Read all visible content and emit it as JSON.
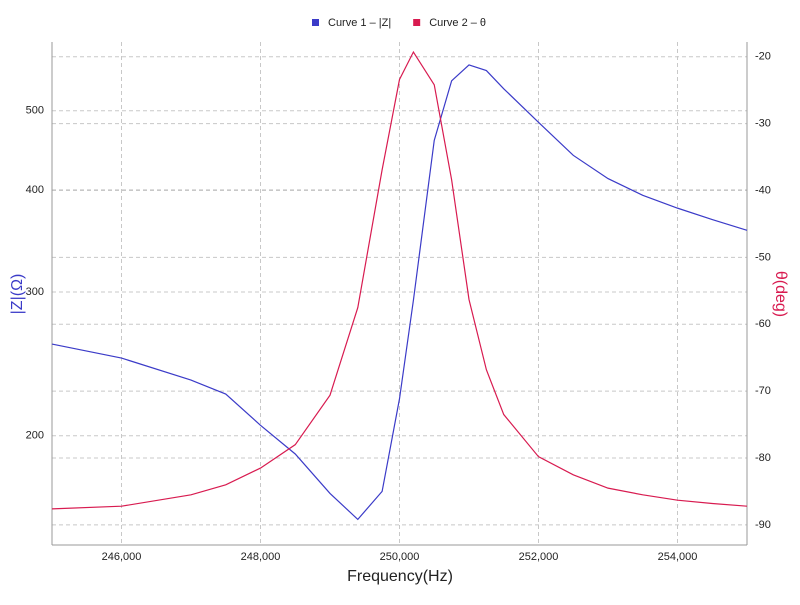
{
  "chart_data": {
    "type": "line",
    "xlabel": "Frequency(Hz)",
    "ylabel": "|Z|(Ω)",
    "y2label": "θ(deg)",
    "x": [
      245000,
      246000,
      247000,
      247500,
      248000,
      248500,
      249000,
      249400,
      249750,
      250000,
      250200,
      250500,
      250750,
      251000,
      251250,
      251500,
      252000,
      252500,
      253000,
      253500,
      254000,
      254500,
      255000
    ],
    "series": [
      {
        "name": "Curve 1 – |Z|",
        "color": "#3b3bc8",
        "axis": "y",
        "values": [
          259,
          249,
          234,
          225,
          206,
          190,
          170,
          158,
          171,
          222,
          293,
          460,
          544,
          569,
          560,
          532,
          484,
          441,
          413,
          394,
          380,
          368,
          357
        ]
      },
      {
        "name": "Curve 2 – θ",
        "color": "#d81b50",
        "axis": "y2",
        "values": [
          -87.6,
          -87.2,
          -85.5,
          -84.0,
          -81.5,
          -78.0,
          -70.6,
          -57.5,
          -36.9,
          -23.4,
          -19.3,
          -24.2,
          -38.4,
          -56.3,
          -66.8,
          -73.5,
          -79.8,
          -82.5,
          -84.5,
          -85.5,
          -86.3,
          -86.8,
          -87.2
        ]
      }
    ],
    "xlim": [
      245000,
      255000
    ],
    "xticks": [
      {
        "value": 246000,
        "label": "246,000"
      },
      {
        "value": 248000,
        "label": "248,000"
      },
      {
        "value": 250000,
        "label": "250,000"
      },
      {
        "value": 252000,
        "label": "252,000"
      },
      {
        "value": 254000,
        "label": "254,000"
      }
    ],
    "ylim": [
      147,
      607
    ],
    "ylog": true,
    "yticks": [
      200,
      300,
      400,
      500
    ],
    "y2lim": [
      -93,
      -17.8
    ],
    "y2ticks": [
      -90,
      -80,
      -70,
      -60,
      -50,
      -40,
      -30,
      -20
    ],
    "grid": true,
    "legend": "top"
  }
}
